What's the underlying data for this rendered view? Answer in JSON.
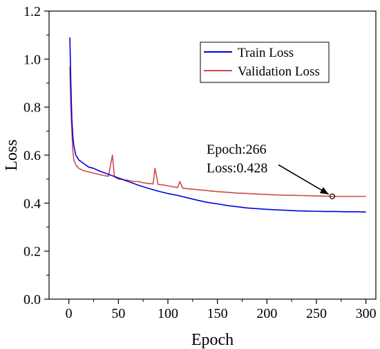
{
  "chart_data": {
    "type": "line",
    "xlabel": "Epoch",
    "ylabel": "Loss",
    "xlim": [
      -20,
      310
    ],
    "ylim": [
      0.0,
      1.2
    ],
    "xticks": [
      0,
      50,
      100,
      150,
      200,
      250,
      300
    ],
    "yticks": [
      0.0,
      0.2,
      0.4,
      0.6,
      0.8,
      1.0,
      1.2
    ],
    "xtick_labels": [
      "0",
      "50",
      "100",
      "150",
      "200",
      "250",
      "300"
    ],
    "ytick_labels": [
      "0.0",
      "0.2",
      "0.4",
      "0.6",
      "0.8",
      "1.0",
      "1.2"
    ],
    "grid": false,
    "legend_position": "top-right",
    "series": [
      {
        "name": "Train Loss",
        "color": "#0000dd",
        "x": [
          1,
          2,
          3,
          4,
          5,
          7,
          10,
          15,
          20,
          25,
          30,
          40,
          50,
          60,
          70,
          80,
          90,
          100,
          110,
          120,
          130,
          140,
          150,
          160,
          170,
          180,
          190,
          200,
          210,
          220,
          230,
          240,
          250,
          260,
          270,
          280,
          290,
          300
        ],
        "values": [
          1.09,
          0.9,
          0.75,
          0.68,
          0.64,
          0.6,
          0.58,
          0.565,
          0.55,
          0.545,
          0.535,
          0.52,
          0.505,
          0.49,
          0.475,
          0.462,
          0.45,
          0.44,
          0.432,
          0.422,
          0.412,
          0.403,
          0.397,
          0.39,
          0.385,
          0.38,
          0.377,
          0.374,
          0.372,
          0.37,
          0.368,
          0.367,
          0.366,
          0.365,
          0.365,
          0.364,
          0.364,
          0.363
        ]
      },
      {
        "name": "Validation Loss",
        "color": "#d04848",
        "x": [
          1,
          2,
          3,
          4,
          5,
          7,
          10,
          15,
          20,
          25,
          30,
          35,
          40,
          44,
          46,
          50,
          55,
          60,
          65,
          70,
          75,
          80,
          85,
          87,
          90,
          95,
          100,
          105,
          110,
          112,
          115,
          120,
          130,
          140,
          150,
          160,
          170,
          180,
          190,
          200,
          210,
          220,
          230,
          240,
          250,
          260,
          266,
          270,
          280,
          290,
          300
        ],
        "values": [
          0.97,
          0.8,
          0.7,
          0.62,
          0.58,
          0.56,
          0.545,
          0.535,
          0.53,
          0.525,
          0.52,
          0.515,
          0.512,
          0.6,
          0.51,
          0.5,
          0.498,
          0.495,
          0.49,
          0.49,
          0.485,
          0.482,
          0.48,
          0.545,
          0.478,
          0.476,
          0.472,
          0.468,
          0.465,
          0.49,
          0.462,
          0.46,
          0.456,
          0.452,
          0.448,
          0.445,
          0.442,
          0.44,
          0.438,
          0.436,
          0.434,
          0.433,
          0.432,
          0.431,
          0.43,
          0.429,
          0.428,
          0.428,
          0.428,
          0.428,
          0.428
        ]
      }
    ],
    "annotation": {
      "line1": "Epoch:266",
      "line2": "Loss:0.428",
      "point_x": 266,
      "point_y": 0.428
    }
  }
}
